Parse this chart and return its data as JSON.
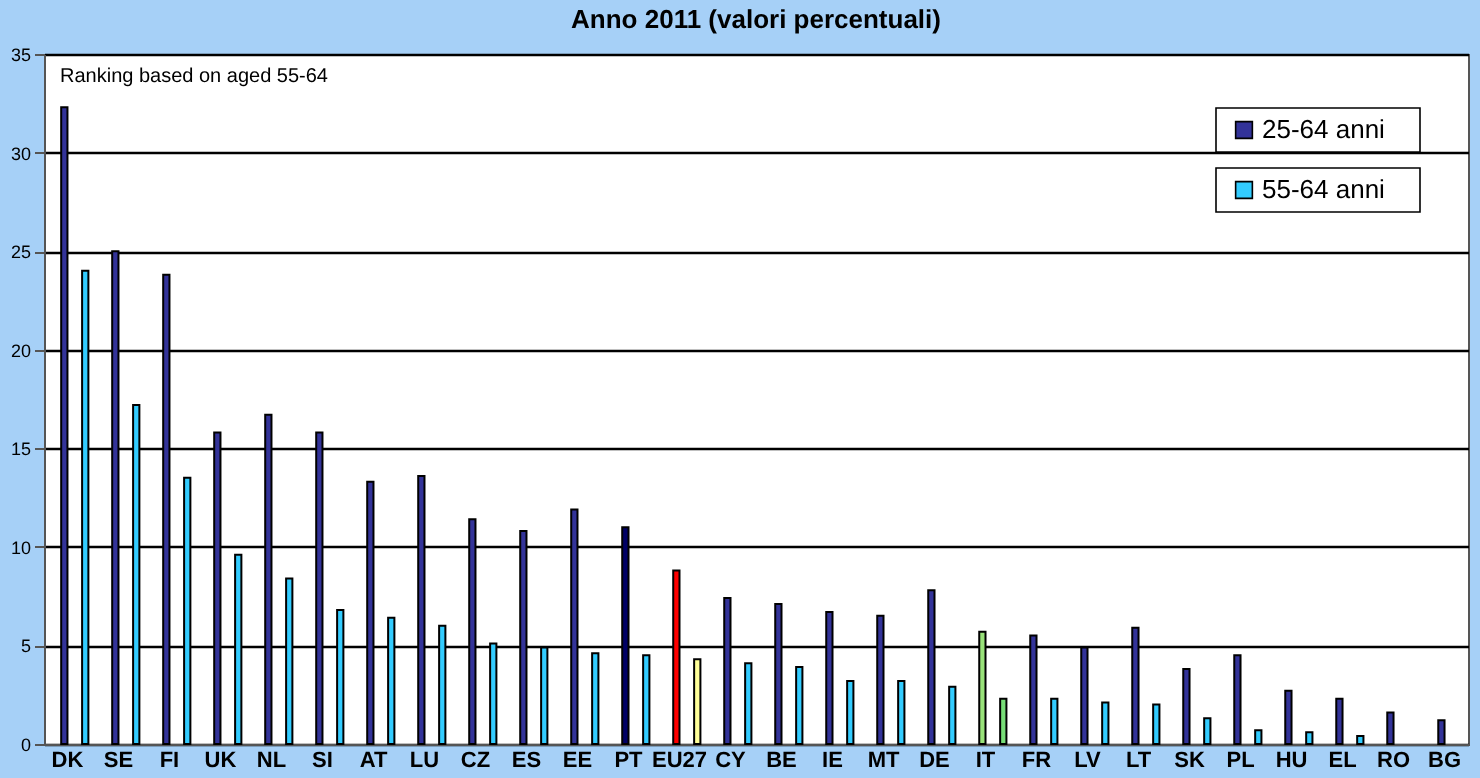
{
  "chart_data": {
    "type": "bar",
    "title": "Anno 2011 (valori percentuali)",
    "annotations": [
      "Ranking based on aged 55-64"
    ],
    "categories": [
      "DK",
      "SE",
      "FI",
      "UK",
      "NL",
      "SI",
      "AT",
      "LU",
      "CZ",
      "ES",
      "EE",
      "PT",
      "EU27",
      "CY",
      "BE",
      "IE",
      "MT",
      "DE",
      "IT",
      "FR",
      "LV",
      "LT",
      "SK",
      "PL",
      "HU",
      "EL",
      "RO",
      "BG"
    ],
    "series": [
      {
        "name": "25-64 anni",
        "color": "#333399",
        "colors": [
          "#333399",
          "#333399",
          "#333399",
          "#333399",
          "#333399",
          "#333399",
          "#333399",
          "#333399",
          "#333399",
          "#333399",
          "#333399",
          "#000066",
          "#ff0000",
          "#333399",
          "#333399",
          "#333399",
          "#333399",
          "#333399",
          "#99e27a",
          "#333399",
          "#333399",
          "#333399",
          "#333399",
          "#333399",
          "#333399",
          "#333399",
          "#333399",
          "#333399"
        ],
        "values": [
          32.3,
          25.0,
          23.8,
          15.8,
          16.7,
          15.8,
          13.3,
          13.6,
          11.4,
          10.8,
          11.9,
          11.0,
          8.8,
          7.4,
          7.1,
          6.7,
          6.5,
          7.8,
          5.7,
          5.5,
          4.9,
          5.9,
          3.8,
          4.5,
          2.7,
          2.3,
          1.6,
          1.2
        ]
      },
      {
        "name": "55-64 anni",
        "color": "#33ccff",
        "colors": [
          "#33ccff",
          "#33ccff",
          "#33ccff",
          "#33ccff",
          "#33ccff",
          "#33ccff",
          "#33ccff",
          "#33ccff",
          "#33ccff",
          "#33ccff",
          "#33ccff",
          "#33ccff",
          "#ffff99",
          "#33ccff",
          "#33ccff",
          "#33ccff",
          "#33ccff",
          "#33ccff",
          "#77dd77",
          "#33ccff",
          "#33ccff",
          "#33ccff",
          "#33ccff",
          "#33ccff",
          "#33ccff",
          "#33ccff",
          "#33ccff",
          "#33ccff"
        ],
        "values": [
          24.0,
          17.2,
          13.5,
          9.6,
          8.4,
          6.8,
          6.4,
          6.0,
          5.1,
          4.9,
          4.6,
          4.5,
          4.3,
          4.1,
          3.9,
          3.2,
          3.2,
          2.9,
          2.3,
          2.3,
          2.1,
          2.0,
          1.3,
          0.7,
          0.6,
          0.4,
          null,
          null
        ]
      }
    ],
    "ylim": [
      0,
      35
    ],
    "yticks": [
      0,
      5,
      10,
      15,
      20,
      25,
      30,
      35
    ],
    "grid": "y",
    "legend": "top right"
  }
}
